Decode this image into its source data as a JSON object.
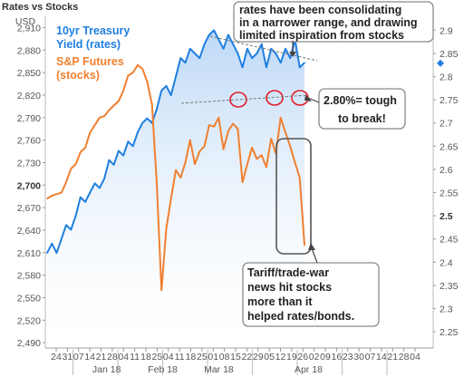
{
  "chart_data": {
    "type": "line",
    "title": "Rates vs Stocks",
    "ylabel": "USD",
    "x_ticks": [
      "24",
      "31",
      "07",
      "14",
      "21",
      "28",
      "04",
      "11",
      "18",
      "25",
      "04",
      "11",
      "18",
      "25",
      "01",
      "08",
      "15",
      "22",
      "29",
      "05",
      "12",
      "19",
      "26",
      "02",
      "09",
      "16",
      "23",
      "30",
      "07",
      "14",
      "21",
      "28",
      "04"
    ],
    "x_month_labels": [
      "Jan 18",
      "Feb 18",
      "Mar 18",
      "Apr 18"
    ],
    "y_left_ticks": [
      2490,
      2520,
      2550,
      2580,
      2610,
      2640,
      2670,
      2700,
      2730,
      2760,
      2790,
      2820,
      2850,
      2880,
      2910
    ],
    "y_left_tick_labels": [
      "2,490",
      "2,520",
      "2,550",
      "2,580",
      "2,610",
      "2,640",
      "2,670",
      "2,700",
      "2,730",
      "2,760",
      "2,790",
      "2,820",
      "2,850",
      "2,880",
      "2,910"
    ],
    "y_left_bold": "2,700",
    "ylim_left": [
      2483,
      2925
    ],
    "y_right_ticks": [
      2.25,
      2.3,
      2.35,
      2.4,
      2.45,
      2.5,
      2.55,
      2.6,
      2.65,
      2.7,
      2.75,
      2.8,
      2.85,
      2.9
    ],
    "y_right_tick_labels": [
      "2.25",
      "2.3",
      "2.35",
      "2.4",
      "2.45",
      "2.5",
      "2.55",
      "2.6",
      "2.65",
      "2.7",
      "2.75",
      "2.8",
      "2.85",
      "2.9"
    ],
    "y_right_bold": "2.5",
    "ylim_right": [
      2.215,
      2.93
    ],
    "right_marker_value": 2.829,
    "series": [
      {
        "name": "10yr Treasury Yield (rates)",
        "color": "#1f7fe0",
        "axis": "right",
        "fill": true,
        "x": [
          0,
          1,
          2,
          3,
          4,
          5,
          6,
          7,
          8,
          9,
          10,
          11,
          12,
          13,
          14,
          15,
          16,
          17,
          18,
          19,
          20,
          21,
          22,
          23,
          24,
          25,
          26,
          27,
          28,
          29,
          30,
          31,
          32,
          33,
          34,
          35,
          36,
          37,
          38,
          39,
          40,
          41,
          42,
          43,
          44,
          45,
          46,
          47,
          48,
          49,
          50,
          51,
          52,
          53,
          54
        ],
        "values": [
          2.42,
          2.44,
          2.42,
          2.45,
          2.48,
          2.47,
          2.5,
          2.54,
          2.53,
          2.55,
          2.57,
          2.56,
          2.58,
          2.62,
          2.61,
          2.64,
          2.63,
          2.66,
          2.65,
          2.68,
          2.7,
          2.71,
          2.7,
          2.73,
          2.77,
          2.78,
          2.76,
          2.8,
          2.84,
          2.83,
          2.86,
          2.85,
          2.84,
          2.87,
          2.89,
          2.9,
          2.88,
          2.86,
          2.89,
          2.87,
          2.85,
          2.82,
          2.86,
          2.84,
          2.85,
          2.87,
          2.82,
          2.86,
          2.85,
          2.83,
          2.86,
          2.84,
          2.88,
          2.82,
          2.83
        ]
      },
      {
        "name": "S&P Futures (stocks)",
        "color": "#f07f30",
        "axis": "left",
        "fill": false,
        "x": [
          0,
          1,
          2,
          3,
          4,
          5,
          6,
          7,
          8,
          9,
          10,
          11,
          12,
          13,
          14,
          15,
          16,
          17,
          18,
          19,
          20,
          21,
          22,
          23,
          24,
          25,
          26,
          27,
          28,
          29,
          30,
          31,
          32,
          33,
          34,
          35,
          36,
          37,
          38,
          39,
          40,
          41,
          42,
          43,
          44,
          45,
          46,
          47,
          48,
          49,
          50,
          51,
          52,
          53,
          54
        ],
        "values": [
          2682,
          2686,
          2688,
          2690,
          2704,
          2722,
          2728,
          2744,
          2750,
          2770,
          2780,
          2790,
          2792,
          2800,
          2806,
          2812,
          2826,
          2846,
          2850,
          2860,
          2855,
          2838,
          2808,
          2702,
          2560,
          2642,
          2682,
          2720,
          2710,
          2730,
          2760,
          2728,
          2745,
          2752,
          2780,
          2778,
          2790,
          2748,
          2772,
          2782,
          2775,
          2704,
          2728,
          2750,
          2735,
          2740,
          2724,
          2762,
          2742,
          2790,
          2770,
          2752,
          2730,
          2710,
          2620
        ]
      }
    ],
    "annotations": [
      "rates have been consolidating in a narrower range, and drawing limited inspiration from stocks",
      "2.80%= tough to break!",
      "Tariff/trade-war news hit stocks more than it helped rates/bonds."
    ]
  },
  "legend": {
    "rates_line1": "10yr Treasury",
    "rates_line2": "Yield (rates)",
    "stocks_line1": "S&P Futures",
    "stocks_line2": "(stocks)"
  },
  "annotation_top": [
    "rates have been consolidating",
    "in a narrower range, and drawing",
    "limited inspiration from stocks"
  ],
  "annotation_right": [
    "2.80%= tough",
    "to break!"
  ],
  "annotation_bottom": [
    "Tariff/trade-war",
    "news hit stocks",
    "more than it",
    "helped rates/bonds."
  ]
}
